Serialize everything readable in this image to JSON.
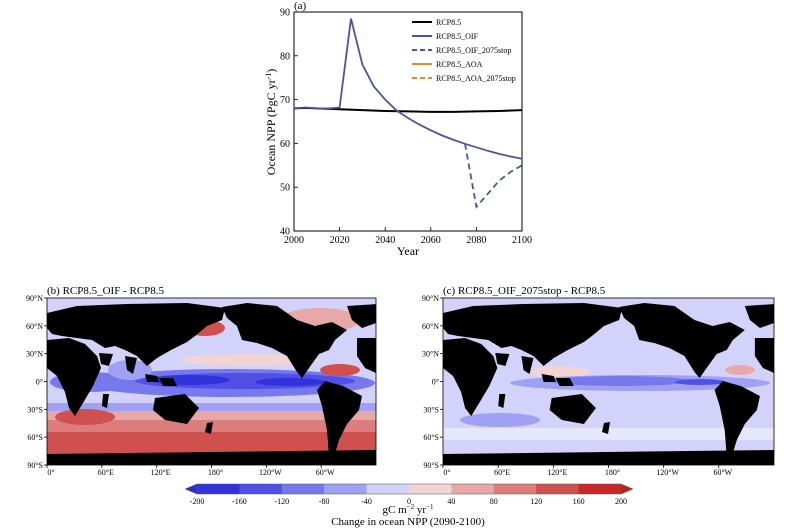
{
  "chart_data": [
    {
      "type": "line",
      "panel_label": "(a)",
      "xlabel": "Year",
      "ylabel": "Ocean NPP (PgC yr",
      "ylabel_sup": "-1",
      "ylabel_close": ")",
      "xlim": [
        2000,
        2100
      ],
      "ylim": [
        40,
        90
      ],
      "xticks": [
        2000,
        2020,
        2040,
        2060,
        2080,
        2100
      ],
      "yticks": [
        40,
        50,
        60,
        70,
        80,
        90
      ],
      "legend_position": "top-right",
      "series": [
        {
          "name": "RCP8.5",
          "color": "#000000",
          "dash": false,
          "x": [
            2000,
            2005,
            2010,
            2015,
            2020,
            2030,
            2040,
            2050,
            2060,
            2070,
            2080,
            2090,
            2100
          ],
          "y": [
            68.0,
            68.1,
            68.0,
            67.9,
            67.8,
            67.6,
            67.4,
            67.3,
            67.2,
            67.2,
            67.3,
            67.4,
            67.6
          ]
        },
        {
          "name": "RCP8.5_OIF",
          "color": "#4a55a2",
          "dash": false,
          "x": [
            2000,
            2005,
            2010,
            2015,
            2020,
            2025,
            2030,
            2035,
            2040,
            2045,
            2050,
            2055,
            2060,
            2065,
            2070,
            2075,
            2080,
            2085,
            2090,
            2095,
            2100
          ],
          "y": [
            68.0,
            68.2,
            68.0,
            68.0,
            68.2,
            88.5,
            78.0,
            73.0,
            70.0,
            67.5,
            65.8,
            64.3,
            63.0,
            61.8,
            60.8,
            59.9,
            59.1,
            58.3,
            57.6,
            57.0,
            56.5
          ]
        },
        {
          "name": "RCP8.5_OIF_2075stop",
          "color": "#4a55a2",
          "dash": true,
          "x": [
            2075,
            2080,
            2085,
            2090,
            2095,
            2100
          ],
          "y": [
            59.9,
            45.5,
            48.5,
            51.5,
            53.5,
            55.0
          ]
        },
        {
          "name": "RCP8.5_AOA",
          "color": "#d9902c",
          "dash": false,
          "x": [],
          "y": []
        },
        {
          "name": "RCP8.5_AOA_2075stop",
          "color": "#d9902c",
          "dash": true,
          "x": [],
          "y": []
        }
      ]
    },
    {
      "type": "heatmap",
      "panel_label": "(b) RCP8.5_OIF - RCP8.5",
      "x_ticks": [
        "0°",
        "60°E",
        "120°E",
        "180°",
        "120°W",
        "60°W"
      ],
      "y_ticks": [
        "90°N",
        "60°N",
        "30°N",
        "0°",
        "30°S",
        "60°S",
        "90°S"
      ]
    },
    {
      "type": "heatmap",
      "panel_label": "(c) RCP8.5_OIF_2075stop - RCP8.5",
      "x_ticks": [
        "0°",
        "60°E",
        "120°E",
        "180°",
        "120°W",
        "60°W"
      ],
      "y_ticks": [
        "90°N",
        "60°N",
        "30°N",
        "0°",
        "30°S",
        "60°S",
        "90°S"
      ]
    }
  ],
  "colorbar": {
    "ticks": [
      "-200",
      "-160",
      "-120",
      "-80",
      "-40",
      "0",
      "40",
      "80",
      "120",
      "160",
      "200"
    ],
    "colors": [
      "#3232dc",
      "#5050e6",
      "#7878ee",
      "#a0a0f4",
      "#d2d2fa",
      "#f2d4d4",
      "#e8a8a8",
      "#dc7c7c",
      "#d05050",
      "#c82828"
    ],
    "unit_main": "gC m",
    "unit_sup1": "−2",
    "unit_mid": " yr",
    "unit_sup2": "−1",
    "label": "Change in ocean NPP (2090-2100)"
  }
}
